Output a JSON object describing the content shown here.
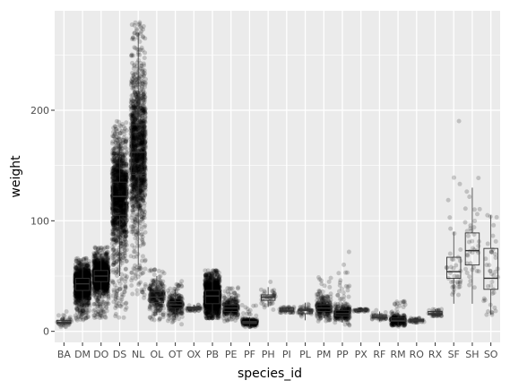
{
  "chart_data": {
    "type": "boxplot",
    "title": "",
    "xlabel": "species_id",
    "ylabel": "weight",
    "ylim": [
      -10,
      290
    ],
    "yticks": [
      0,
      100,
      200
    ],
    "grid": true,
    "legend": "none",
    "colors": {
      "panel": "#ebebeb",
      "grid_major": "#ffffff",
      "points": "#000000",
      "box_line": "#333333"
    },
    "categories": [
      "BA",
      "DM",
      "DO",
      "DS",
      "NL",
      "OL",
      "OT",
      "OX",
      "PB",
      "PE",
      "PF",
      "PH",
      "PI",
      "PL",
      "PM",
      "PP",
      "PX",
      "RF",
      "RM",
      "RO",
      "RX",
      "SF",
      "SH",
      "SO"
    ],
    "boxes": [
      {
        "id": "BA",
        "lower": 6,
        "q1": 7,
        "median": 8,
        "q3": 10,
        "upper": 13,
        "range": [
          4,
          18
        ],
        "density": "low"
      },
      {
        "id": "DM",
        "lower": 25,
        "q1": 37,
        "median": 43,
        "q3": 48,
        "upper": 62,
        "range": [
          10,
          66
        ],
        "density": "high"
      },
      {
        "id": "DO",
        "lower": 30,
        "q1": 45,
        "median": 50,
        "q3": 55,
        "upper": 70,
        "range": [
          12,
          76
        ],
        "density": "high"
      },
      {
        "id": "DS",
        "lower": 50,
        "q1": 105,
        "median": 122,
        "q3": 135,
        "upper": 170,
        "range": [
          12,
          190
        ],
        "density": "high"
      },
      {
        "id": "NL",
        "lower": 60,
        "q1": 142,
        "median": 162,
        "q3": 187,
        "upper": 270,
        "range": [
          30,
          280
        ],
        "density": "high"
      },
      {
        "id": "OL",
        "lower": 15,
        "q1": 26,
        "median": 31,
        "q3": 36,
        "upper": 50,
        "range": [
          10,
          56
        ],
        "density": "medium"
      },
      {
        "id": "OT",
        "lower": 12,
        "q1": 21,
        "median": 24,
        "q3": 27,
        "upper": 38,
        "range": [
          5,
          46
        ],
        "density": "medium"
      },
      {
        "id": "OX",
        "lower": 18,
        "q1": 20,
        "median": 21,
        "q3": 22,
        "upper": 24,
        "range": [
          18,
          24
        ],
        "density": "low"
      },
      {
        "id": "PB",
        "lower": 15,
        "q1": 25,
        "median": 32,
        "q3": 37,
        "upper": 52,
        "range": [
          12,
          55
        ],
        "density": "high"
      },
      {
        "id": "PE",
        "lower": 12,
        "q1": 18,
        "median": 21,
        "q3": 24,
        "upper": 32,
        "range": [
          8,
          40
        ],
        "density": "medium"
      },
      {
        "id": "PF",
        "lower": 4,
        "q1": 7,
        "median": 8,
        "q3": 9,
        "upper": 13,
        "range": [
          4,
          25
        ],
        "density": "medium"
      },
      {
        "id": "PH",
        "lower": 22,
        "q1": 28,
        "median": 31,
        "q3": 33,
        "upper": 40,
        "range": [
          18,
          48
        ],
        "density": "low"
      },
      {
        "id": "PI",
        "lower": 17,
        "q1": 18,
        "median": 19,
        "q3": 21,
        "upper": 22,
        "range": [
          17,
          22
        ],
        "density": "low"
      },
      {
        "id": "PL",
        "lower": 10,
        "q1": 16,
        "median": 19,
        "q3": 20,
        "upper": 26,
        "range": [
          8,
          28
        ],
        "density": "low"
      },
      {
        "id": "PM",
        "lower": 12,
        "q1": 18,
        "median": 21,
        "q3": 24,
        "upper": 32,
        "range": [
          8,
          49
        ],
        "density": "medium"
      },
      {
        "id": "PP",
        "lower": 8,
        "q1": 14,
        "median": 16,
        "q3": 19,
        "upper": 26,
        "range": [
          5,
          74
        ],
        "density": "medium"
      },
      {
        "id": "PX",
        "lower": 18,
        "q1": 19,
        "median": 19,
        "q3": 20,
        "upper": 20,
        "range": [
          18,
          20
        ],
        "density": "low"
      },
      {
        "id": "RF",
        "lower": 9,
        "q1": 12,
        "median": 13,
        "q3": 15,
        "upper": 18,
        "range": [
          9,
          20
        ],
        "density": "low"
      },
      {
        "id": "RM",
        "lower": 5,
        "q1": 9,
        "median": 10,
        "q3": 12,
        "upper": 17,
        "range": [
          4,
          29
        ],
        "density": "medium"
      },
      {
        "id": "RO",
        "lower": 8,
        "q1": 9,
        "median": 10,
        "q3": 11,
        "upper": 12,
        "range": [
          8,
          12
        ],
        "density": "low"
      },
      {
        "id": "RX",
        "lower": 15,
        "q1": 15,
        "median": 16,
        "q3": 18,
        "upper": 20,
        "range": [
          14,
          20
        ],
        "density": "low"
      },
      {
        "id": "SF",
        "lower": 25,
        "q1": 48,
        "median": 54,
        "q3": 67,
        "upper": 90,
        "range": [
          24,
          199
        ],
        "density": "low"
      },
      {
        "id": "SH",
        "lower": 25,
        "q1": 60,
        "median": 73,
        "q3": 89,
        "upper": 130,
        "range": [
          16,
          140
        ],
        "density": "low"
      },
      {
        "id": "SO",
        "lower": 15,
        "q1": 38,
        "median": 48,
        "q3": 75,
        "upper": 105,
        "range": [
          15,
          105
        ],
        "density": "low"
      }
    ]
  }
}
